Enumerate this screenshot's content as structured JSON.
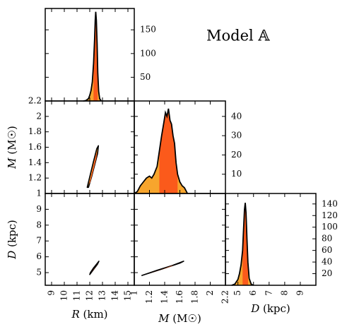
{
  "chart_data": {
    "type": "corner",
    "title": "Model 𝔸",
    "colors": {
      "outer": "#f7a52d",
      "inner": "#fb5a1b",
      "line": "#000000",
      "frame": "#000000"
    },
    "parameters": [
      {
        "key": "R",
        "label": "R (km)",
        "range": [
          8.5,
          15.5
        ],
        "ticks": [
          9,
          10,
          11,
          12,
          13,
          14,
          15
        ]
      },
      {
        "key": "M",
        "label": "M (M☉)",
        "range": [
          1.0,
          2.2
        ],
        "ticks": [
          1.0,
          1.2,
          1.4,
          1.6,
          1.8,
          2.0,
          2.2
        ]
      },
      {
        "key": "D",
        "label": "D (kpc)",
        "range": [
          4.2,
          10.0
        ],
        "ticks": [
          5,
          6,
          7,
          8,
          9
        ]
      }
    ],
    "marginals": [
      {
        "param": "R",
        "ylim": [
          0,
          195
        ],
        "yticks": [
          50,
          100,
          150
        ],
        "curve": [
          [
            11.5,
            0
          ],
          [
            11.7,
            1
          ],
          [
            11.9,
            5
          ],
          [
            12.0,
            12
          ],
          [
            12.1,
            22
          ],
          [
            12.2,
            40
          ],
          [
            12.3,
            80
          ],
          [
            12.38,
            130
          ],
          [
            12.43,
            170
          ],
          [
            12.47,
            188
          ],
          [
            12.52,
            170
          ],
          [
            12.58,
            120
          ],
          [
            12.63,
            60
          ],
          [
            12.7,
            20
          ],
          [
            12.78,
            5
          ],
          [
            12.9,
            0
          ]
        ],
        "inner_range": [
          12.3,
          12.62
        ]
      },
      {
        "param": "M",
        "ylim": [
          0,
          48
        ],
        "yticks": [
          10,
          20,
          30,
          40
        ],
        "curve": [
          [
            1.0,
            0
          ],
          [
            1.04,
            1
          ],
          [
            1.08,
            4
          ],
          [
            1.12,
            6
          ],
          [
            1.16,
            8
          ],
          [
            1.2,
            9
          ],
          [
            1.23,
            8
          ],
          [
            1.26,
            10
          ],
          [
            1.3,
            14
          ],
          [
            1.33,
            22
          ],
          [
            1.36,
            30
          ],
          [
            1.39,
            37
          ],
          [
            1.41,
            42
          ],
          [
            1.43,
            40
          ],
          [
            1.45,
            44
          ],
          [
            1.47,
            38
          ],
          [
            1.49,
            36
          ],
          [
            1.51,
            30
          ],
          [
            1.53,
            26
          ],
          [
            1.55,
            16
          ],
          [
            1.57,
            10
          ],
          [
            1.6,
            6
          ],
          [
            1.63,
            4
          ],
          [
            1.66,
            3
          ],
          [
            1.7,
            0
          ]
        ],
        "inner_range": [
          1.33,
          1.57
        ]
      },
      {
        "param": "D",
        "ylim": [
          0,
          158
        ],
        "yticks": [
          20,
          40,
          60,
          80,
          100,
          120,
          140
        ],
        "curve": [
          [
            4.6,
            0
          ],
          [
            4.8,
            2
          ],
          [
            5.0,
            10
          ],
          [
            5.1,
            20
          ],
          [
            5.2,
            35
          ],
          [
            5.3,
            60
          ],
          [
            5.35,
            90
          ],
          [
            5.42,
            130
          ],
          [
            5.47,
            142
          ],
          [
            5.52,
            125
          ],
          [
            5.58,
            80
          ],
          [
            5.64,
            40
          ],
          [
            5.72,
            12
          ],
          [
            5.85,
            2
          ],
          [
            6.0,
            0
          ]
        ],
        "inner_range": [
          5.3,
          5.65
        ]
      }
    ],
    "joints": [
      {
        "x": "R",
        "y": "M",
        "outer": [
          [
            11.8,
            1.08
          ],
          [
            12.05,
            1.25
          ],
          [
            12.3,
            1.42
          ],
          [
            12.55,
            1.58
          ],
          [
            12.68,
            1.62
          ],
          [
            12.62,
            1.52
          ],
          [
            12.4,
            1.38
          ],
          [
            12.15,
            1.22
          ],
          [
            11.9,
            1.08
          ]
        ],
        "inner": [
          [
            11.95,
            1.12
          ],
          [
            12.2,
            1.3
          ],
          [
            12.45,
            1.48
          ],
          [
            12.6,
            1.56
          ],
          [
            12.52,
            1.46
          ],
          [
            12.28,
            1.3
          ],
          [
            12.03,
            1.14
          ]
        ]
      },
      {
        "x": "R",
        "y": "D",
        "outer": [
          [
            12.0,
            4.88
          ],
          [
            12.3,
            5.2
          ],
          [
            12.6,
            5.52
          ],
          [
            12.72,
            5.72
          ],
          [
            12.6,
            5.6
          ],
          [
            12.3,
            5.3
          ],
          [
            12.05,
            5.0
          ]
        ],
        "inner": [
          [
            12.12,
            5.0
          ],
          [
            12.4,
            5.28
          ],
          [
            12.62,
            5.55
          ],
          [
            12.55,
            5.45
          ],
          [
            12.3,
            5.2
          ]
        ]
      },
      {
        "x": "M",
        "y": "D",
        "outer": [
          [
            1.1,
            4.82
          ],
          [
            1.3,
            5.15
          ],
          [
            1.5,
            5.45
          ],
          [
            1.65,
            5.72
          ],
          [
            1.6,
            5.6
          ],
          [
            1.4,
            5.28
          ],
          [
            1.15,
            4.9
          ]
        ],
        "inner": [
          [
            1.18,
            4.92
          ],
          [
            1.35,
            5.18
          ],
          [
            1.52,
            5.48
          ],
          [
            1.48,
            5.38
          ],
          [
            1.3,
            5.1
          ]
        ]
      }
    ]
  }
}
